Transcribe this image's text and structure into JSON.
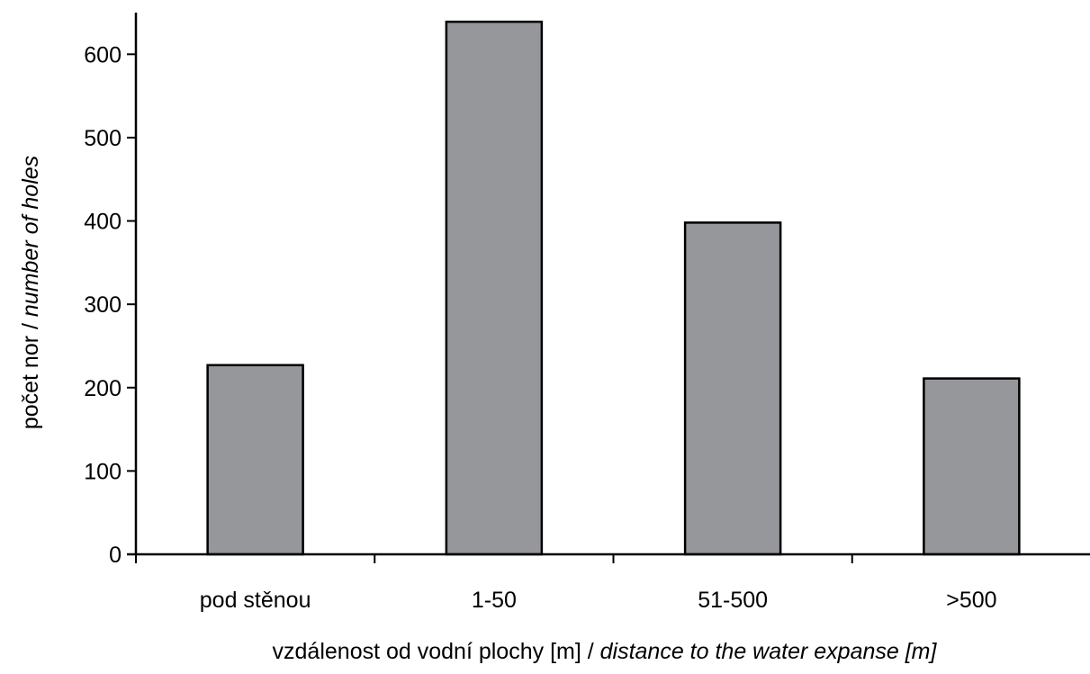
{
  "chart_data": {
    "type": "bar",
    "categories": [
      "pod stěnou",
      "1-50",
      "51-500",
      ">500"
    ],
    "values": [
      227,
      639,
      398,
      211
    ],
    "ylim": [
      0,
      650
    ],
    "yticks": [
      0,
      100,
      200,
      300,
      400,
      500,
      600
    ],
    "grid": false,
    "legend": "none",
    "bar_color": "#96979b",
    "bar_edge_color": "#000000",
    "xlabel": {
      "normal": "vzdálenost od vodní plochy [m] / ",
      "italic": "distance to the water expanse [m]"
    },
    "ylabel": {
      "normal": "počet nor  / ",
      "italic": "number of holes"
    }
  }
}
